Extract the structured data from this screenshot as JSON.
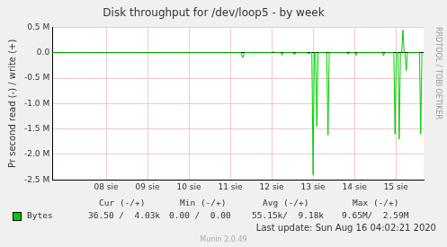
{
  "chart_data": {
    "type": "line",
    "title": "Disk throughput for /dev/loop5 - by week",
    "y_label": "Pr second read (-) / write (+)",
    "side_text": "RRDTOOL / TOBI OETIKER",
    "x": [
      6.7,
      11.26,
      11.3,
      11.34,
      12.01,
      12.04,
      12.07,
      12.22,
      12.25,
      12.28,
      12.52,
      12.55,
      12.58,
      12.87,
      12.9,
      12.93,
      12.97,
      13.0,
      13.03,
      13.06,
      13.09,
      13.12,
      13.33,
      13.36,
      13.39,
      13.82,
      13.85,
      13.88,
      14.01,
      14.04,
      14.07,
      14.67,
      14.7,
      14.73,
      14.95,
      14.98,
      15.01,
      15.05,
      15.08,
      15.11,
      15.14,
      15.17,
      15.2,
      15.22,
      15.25,
      15.28,
      15.57,
      15.6,
      15.63
    ],
    "series": [
      {
        "name": "Bytes",
        "color": "#00cc00",
        "values": [
          0,
          0,
          -100000,
          0,
          0,
          20000,
          0,
          0,
          -50000,
          0,
          0,
          -40000,
          0,
          0,
          -30000,
          0,
          0,
          -2400000,
          0,
          0,
          -1450000,
          0,
          0,
          -1620000,
          0,
          0,
          -30000,
          0,
          0,
          -50000,
          0,
          0,
          -60000,
          0,
          0,
          -1600000,
          0,
          0,
          -1700000,
          0,
          0,
          450000,
          0,
          0,
          -350000,
          0,
          0,
          -1600000,
          0
        ]
      }
    ],
    "xlim": [
      6.7,
      15.67
    ],
    "xticks": [
      {
        "value": 8,
        "label": "08 sie"
      },
      {
        "value": 9,
        "label": "09 sie"
      },
      {
        "value": 10,
        "label": "10 sie"
      },
      {
        "value": 11,
        "label": "11 sie"
      },
      {
        "value": 12,
        "label": "12 sie"
      },
      {
        "value": 13,
        "label": "13 sie"
      },
      {
        "value": 14,
        "label": "14 sie"
      },
      {
        "value": 15,
        "label": "15 sie"
      }
    ],
    "ylim": [
      -2500000,
      500000
    ],
    "yticks": [
      {
        "value": 500000,
        "label": "0.5 M"
      },
      {
        "value": 0,
        "label": "0.0"
      },
      {
        "value": -500000,
        "label": "-0.5 M"
      },
      {
        "value": -1000000,
        "label": "-1.0 M"
      },
      {
        "value": -1500000,
        "label": "-1.5 M"
      },
      {
        "value": -2000000,
        "label": "-2.0 M"
      },
      {
        "value": -2500000,
        "label": "-2.5 M"
      }
    ],
    "grid": true,
    "stats": {
      "columns": [
        "Cur (-/+)",
        "Min (-/+)",
        "Avg (-/+)",
        "Max (-/+)"
      ],
      "rows": [
        {
          "name": "Bytes",
          "cells": [
            "36.50 /  4.03k",
            "0.00 /  0.00",
            "55.15k/  9.18k",
            "9.65M/  2.59M"
          ]
        }
      ]
    },
    "footer": "Last update: Sun Aug 16 04:02:21 2020",
    "credit": "Munin 2.0.49"
  }
}
